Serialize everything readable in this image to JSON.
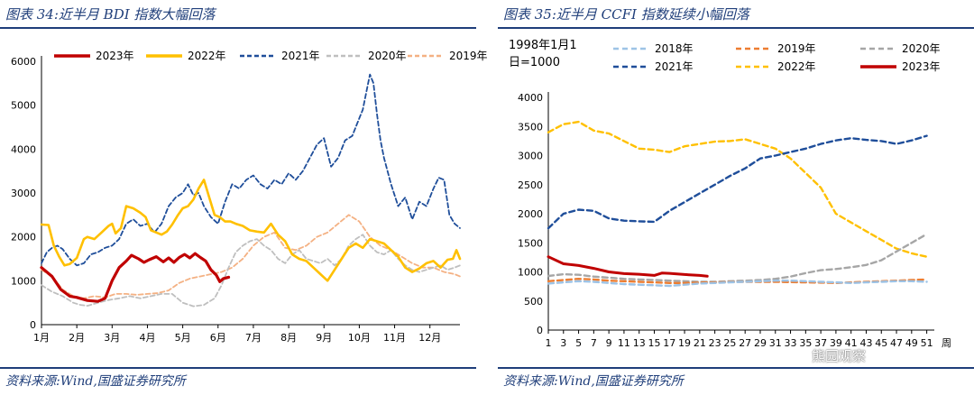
{
  "left_title": "图表 34:近半月 BDI 指数大幅回落",
  "left_source": "资料来源:Wind,国盛证券研究所",
  "right_title": "图表 35:近半月 CCFI 指数延续小幅回落",
  "right_source": "资料来源:Wind,国盛证券研究所",
  "watermark": "熊园观察",
  "chart_data": [
    {
      "type": "line",
      "title": "近半月 BDI 指数大幅回落",
      "ylim": [
        0,
        6000
      ],
      "yticks": [
        "0",
        "1000",
        "2000",
        "3000",
        "4000",
        "5000",
        "6000"
      ],
      "x_labels": [
        "1月",
        "2月",
        "3月",
        "4月",
        "5月",
        "6月",
        "7月",
        "8月",
        "9月",
        "10月",
        "11月",
        "12月"
      ],
      "x_domain": [
        1,
        12.85
      ],
      "legend_position": "top",
      "grid": false,
      "series": [
        {
          "name": "2023年",
          "color": "#c00000",
          "dash": "",
          "width": 3.2,
          "x": [
            1,
            1.3,
            1.55,
            1.8,
            2.0,
            2.3,
            2.6,
            2.8,
            3.0,
            3.2,
            3.4,
            3.55,
            3.75,
            3.9,
            4.05,
            4.25,
            4.45,
            4.6,
            4.75,
            4.9,
            5.05,
            5.2,
            5.35,
            5.5,
            5.65,
            5.8,
            5.95,
            6.05,
            6.15,
            6.3
          ],
          "y": [
            1300,
            1100,
            800,
            650,
            620,
            550,
            530,
            600,
            1000,
            1300,
            1450,
            1580,
            1500,
            1420,
            1480,
            1550,
            1430,
            1520,
            1420,
            1530,
            1600,
            1520,
            1620,
            1530,
            1450,
            1250,
            1130,
            980,
            1050,
            1080
          ]
        },
        {
          "name": "2022年",
          "color": "#ffc000",
          "dash": "",
          "width": 2.6,
          "x": [
            1,
            1.2,
            1.35,
            1.5,
            1.65,
            1.8,
            2.0,
            2.2,
            2.3,
            2.5,
            2.7,
            2.9,
            3.0,
            3.1,
            3.25,
            3.4,
            3.6,
            3.8,
            3.95,
            4.1,
            4.25,
            4.4,
            4.55,
            4.7,
            4.85,
            5.0,
            5.15,
            5.3,
            5.45,
            5.6,
            5.75,
            5.9,
            6.05,
            6.2,
            6.35,
            6.5,
            6.7,
            6.9,
            7.1,
            7.3,
            7.5,
            7.7,
            7.9,
            8.1,
            8.3,
            8.5,
            8.7,
            8.9,
            9.1,
            9.3,
            9.5,
            9.7,
            9.9,
            10.1,
            10.3,
            10.5,
            10.7,
            10.9,
            11.1,
            11.3,
            11.5,
            11.7,
            11.9,
            12.1,
            12.3,
            12.5,
            12.65,
            12.75,
            12.85
          ],
          "y": [
            2280,
            2270,
            1800,
            1550,
            1350,
            1380,
            1520,
            1950,
            2000,
            1950,
            2100,
            2250,
            2300,
            2080,
            2200,
            2700,
            2650,
            2550,
            2450,
            2150,
            2100,
            2050,
            2120,
            2280,
            2480,
            2650,
            2700,
            2850,
            3100,
            3300,
            2900,
            2500,
            2450,
            2350,
            2350,
            2300,
            2250,
            2150,
            2120,
            2100,
            2300,
            2050,
            1900,
            1600,
            1500,
            1450,
            1300,
            1150,
            1000,
            1250,
            1500,
            1750,
            1850,
            1750,
            1950,
            1900,
            1850,
            1700,
            1550,
            1300,
            1200,
            1280,
            1400,
            1450,
            1300,
            1480,
            1500,
            1700,
            1500
          ]
        },
        {
          "name": "2021年",
          "color": "#1f4e9a",
          "dash": "5,3",
          "width": 1.8,
          "x": [
            1,
            1.15,
            1.3,
            1.45,
            1.6,
            1.8,
            2.0,
            2.2,
            2.4,
            2.6,
            2.8,
            3.0,
            3.2,
            3.4,
            3.6,
            3.8,
            4.0,
            4.2,
            4.4,
            4.6,
            4.8,
            5.0,
            5.15,
            5.3,
            5.45,
            5.6,
            5.8,
            6.0,
            6.2,
            6.4,
            6.6,
            6.8,
            7.0,
            7.2,
            7.4,
            7.6,
            7.8,
            8.0,
            8.2,
            8.4,
            8.6,
            8.8,
            9.0,
            9.2,
            9.4,
            9.6,
            9.8,
            9.95,
            10.1,
            10.2,
            10.3,
            10.4,
            10.5,
            10.6,
            10.7,
            10.9,
            11.1,
            11.3,
            11.5,
            11.7,
            11.9,
            12.1,
            12.25,
            12.4,
            12.55,
            12.7,
            12.85
          ],
          "y": [
            1400,
            1650,
            1750,
            1800,
            1720,
            1500,
            1350,
            1400,
            1600,
            1650,
            1750,
            1800,
            1950,
            2300,
            2400,
            2250,
            2300,
            2100,
            2300,
            2700,
            2900,
            3000,
            3200,
            2950,
            3000,
            2700,
            2450,
            2300,
            2800,
            3200,
            3100,
            3300,
            3400,
            3200,
            3100,
            3300,
            3200,
            3450,
            3300,
            3500,
            3800,
            4100,
            4250,
            3600,
            3800,
            4200,
            4300,
            4600,
            4900,
            5300,
            5700,
            5500,
            4800,
            4200,
            3800,
            3200,
            2700,
            2900,
            2400,
            2800,
            2700,
            3100,
            3350,
            3300,
            2500,
            2300,
            2200
          ]
        },
        {
          "name": "2020年",
          "color": "#bfbfbf",
          "dash": "5,3",
          "width": 1.8,
          "x": [
            1,
            1.3,
            1.6,
            1.9,
            2.1,
            2.3,
            2.6,
            2.9,
            3.2,
            3.5,
            3.8,
            4.1,
            4.4,
            4.7,
            5.0,
            5.3,
            5.6,
            5.9,
            6.1,
            6.3,
            6.5,
            6.7,
            6.9,
            7.1,
            7.3,
            7.5,
            7.7,
            7.9,
            8.1,
            8.3,
            8.5,
            8.7,
            8.9,
            9.1,
            9.3,
            9.5,
            9.7,
            9.9,
            10.1,
            10.3,
            10.5,
            10.7,
            10.9,
            11.1,
            11.3,
            11.5,
            11.7,
            11.9,
            12.1,
            12.3,
            12.5,
            12.7,
            12.85
          ],
          "y": [
            900,
            750,
            650,
            500,
            450,
            430,
            500,
            560,
            600,
            650,
            600,
            650,
            700,
            700,
            500,
            420,
            450,
            600,
            900,
            1300,
            1650,
            1800,
            1900,
            1950,
            1800,
            1700,
            1500,
            1400,
            1600,
            1700,
            1500,
            1450,
            1400,
            1500,
            1350,
            1500,
            1800,
            1950,
            2050,
            1800,
            1650,
            1600,
            1700,
            1500,
            1350,
            1250,
            1200,
            1250,
            1300,
            1350,
            1250,
            1300,
            1350
          ]
        },
        {
          "name": "2019年",
          "color": "#f4b183",
          "dash": "5,3",
          "width": 1.8,
          "x": [
            1,
            1.3,
            1.6,
            1.9,
            2.2,
            2.5,
            2.8,
            3.1,
            3.4,
            3.7,
            4.0,
            4.3,
            4.6,
            4.9,
            5.2,
            5.5,
            5.8,
            6.1,
            6.4,
            6.7,
            7.0,
            7.3,
            7.6,
            7.9,
            8.2,
            8.5,
            8.8,
            9.1,
            9.4,
            9.7,
            10.0,
            10.3,
            10.6,
            10.9,
            11.2,
            11.5,
            11.8,
            12.1,
            12.4,
            12.7,
            12.85
          ],
          "y": [
            1250,
            1100,
            800,
            650,
            600,
            650,
            620,
            700,
            700,
            680,
            700,
            720,
            780,
            950,
            1050,
            1100,
            1150,
            1200,
            1300,
            1500,
            1800,
            2000,
            2100,
            1750,
            1700,
            1800,
            2000,
            2100,
            2300,
            2500,
            2350,
            2000,
            1800,
            1700,
            1550,
            1400,
            1300,
            1300,
            1200,
            1150,
            1100
          ]
        }
      ]
    },
    {
      "type": "line",
      "title": "近半月 CCFI 指数延续小幅回落",
      "note": [
        "1998年1月1",
        "日=1000"
      ],
      "ylim": [
        0,
        4000
      ],
      "yticks": [
        "0",
        "500",
        "1000",
        "1500",
        "2000",
        "2500",
        "3000",
        "3500",
        "4000"
      ],
      "x_labels": [
        "1",
        "3",
        "5",
        "7",
        "9",
        "11",
        "13",
        "15",
        "17",
        "19",
        "21",
        "23",
        "25",
        "27",
        "29",
        "31",
        "33",
        "35",
        "37",
        "39",
        "41",
        "43",
        "45",
        "47",
        "49",
        "51"
      ],
      "x_unit": "周",
      "x_domain": [
        1,
        52
      ],
      "legend_position": "top",
      "grid": false,
      "series": [
        {
          "name": "2018年",
          "color": "#9dc3e6",
          "dash": "6,4",
          "width": 2.4,
          "x": [
            1,
            3,
            5,
            7,
            9,
            11,
            13,
            15,
            17,
            19,
            21,
            23,
            25,
            27,
            29,
            31,
            33,
            35,
            37,
            39,
            41,
            43,
            45,
            47,
            49,
            51
          ],
          "y": [
            800,
            820,
            840,
            830,
            810,
            790,
            780,
            770,
            760,
            780,
            800,
            810,
            820,
            830,
            840,
            850,
            850,
            840,
            830,
            820,
            810,
            820,
            830,
            840,
            840,
            830
          ]
        },
        {
          "name": "2019年",
          "color": "#ed7d31",
          "dash": "6,4",
          "width": 2.4,
          "x": [
            1,
            3,
            5,
            7,
            9,
            11,
            13,
            15,
            17,
            19,
            21,
            23,
            25,
            27,
            29,
            31,
            33,
            35,
            37,
            39,
            41,
            43,
            45,
            47,
            49,
            51
          ],
          "y": [
            840,
            860,
            880,
            870,
            850,
            840,
            830,
            820,
            810,
            810,
            815,
            820,
            825,
            830,
            830,
            830,
            825,
            820,
            815,
            810,
            820,
            830,
            840,
            850,
            860,
            870
          ]
        },
        {
          "name": "2020年",
          "color": "#a6a6a6",
          "dash": "6,4",
          "width": 2.4,
          "x": [
            1,
            3,
            5,
            7,
            9,
            11,
            13,
            15,
            17,
            19,
            21,
            23,
            25,
            27,
            29,
            31,
            33,
            35,
            37,
            39,
            41,
            43,
            45,
            47,
            49,
            51
          ],
          "y": [
            930,
            960,
            950,
            920,
            900,
            880,
            870,
            860,
            850,
            840,
            830,
            830,
            840,
            850,
            860,
            880,
            920,
            980,
            1030,
            1050,
            1080,
            1120,
            1200,
            1350,
            1500,
            1650
          ]
        },
        {
          "name": "2021年",
          "color": "#1f4e9a",
          "dash": "6,4",
          "width": 2.4,
          "x": [
            1,
            3,
            5,
            7,
            9,
            11,
            13,
            15,
            17,
            19,
            21,
            23,
            25,
            27,
            29,
            31,
            33,
            35,
            37,
            39,
            41,
            43,
            45,
            47,
            49,
            51
          ],
          "y": [
            1750,
            2000,
            2070,
            2050,
            1920,
            1880,
            1870,
            1860,
            2050,
            2200,
            2350,
            2500,
            2650,
            2780,
            2950,
            3000,
            3060,
            3120,
            3200,
            3260,
            3300,
            3270,
            3250,
            3200,
            3260,
            3340
          ]
        },
        {
          "name": "2022年",
          "color": "#ffc000",
          "dash": "6,4",
          "width": 2.4,
          "x": [
            1,
            3,
            5,
            7,
            9,
            11,
            13,
            15,
            17,
            19,
            21,
            23,
            25,
            27,
            29,
            31,
            33,
            35,
            37,
            39,
            41,
            43,
            45,
            47,
            49,
            51
          ],
          "y": [
            3400,
            3540,
            3580,
            3430,
            3380,
            3250,
            3120,
            3100,
            3060,
            3160,
            3200,
            3240,
            3250,
            3280,
            3200,
            3120,
            2950,
            2700,
            2450,
            2000,
            1850,
            1700,
            1550,
            1400,
            1320,
            1260
          ]
        },
        {
          "name": "2023年",
          "color": "#c00000",
          "dash": "",
          "width": 3,
          "x": [
            1,
            3,
            5,
            7,
            9,
            11,
            13,
            15,
            16,
            17,
            19,
            21,
            22
          ],
          "y": [
            1260,
            1140,
            1110,
            1060,
            1000,
            970,
            960,
            940,
            980,
            975,
            955,
            940,
            925
          ]
        }
      ]
    }
  ]
}
